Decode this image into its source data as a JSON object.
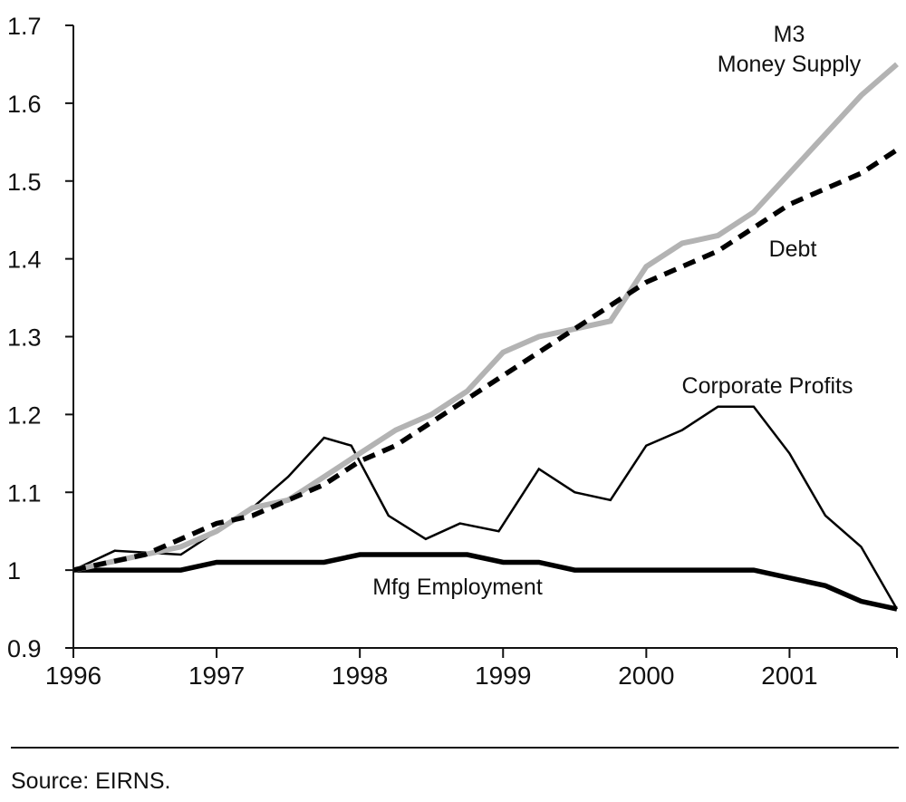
{
  "source": "Source:  EIRNS.",
  "chart_data": {
    "type": "line",
    "title": "",
    "xlabel": "",
    "ylabel": "",
    "xlim": [
      1996,
      2001.75
    ],
    "ylim": [
      0.9,
      1.7
    ],
    "yticks": [
      "0.9",
      "1",
      "1.1",
      "1.2",
      "1.3",
      "1.4",
      "1.5",
      "1.6",
      "1.7"
    ],
    "xticks": [
      "1996",
      "1997",
      "1998",
      "1999",
      "2000",
      "2001"
    ],
    "grid": false,
    "legend": "none (series labeled directly on chart)",
    "annotations": [
      {
        "text": "M3",
        "series": "M3 Money Supply"
      },
      {
        "text": "Money Supply",
        "series": "M3 Money Supply"
      },
      {
        "text": "Debt",
        "series": "Debt"
      },
      {
        "text": "Corporate Profits",
        "series": "Corporate Profits"
      },
      {
        "text": "Mfg Employment",
        "series": "Mfg Employment"
      }
    ],
    "series": [
      {
        "name": "M3 Money Supply",
        "color": "#b3b3b3",
        "style": "solid-thick",
        "x": [
          1996,
          1996.25,
          1996.5,
          1996.75,
          1997,
          1997.25,
          1997.5,
          1997.75,
          1998,
          1998.25,
          1998.5,
          1998.75,
          1999,
          1999.25,
          1999.5,
          1999.75,
          2000,
          2000.25,
          2000.5,
          2000.75,
          2001,
          2001.25,
          2001.5,
          2001.75
        ],
        "y": [
          1.0,
          1.01,
          1.02,
          1.03,
          1.05,
          1.08,
          1.09,
          1.12,
          1.15,
          1.18,
          1.2,
          1.23,
          1.28,
          1.3,
          1.31,
          1.32,
          1.39,
          1.42,
          1.43,
          1.46,
          1.51,
          1.56,
          1.61,
          1.65
        ]
      },
      {
        "name": "Debt",
        "color": "#000000",
        "style": "dashed-thick",
        "x": [
          1996,
          1996.25,
          1996.5,
          1996.75,
          1997,
          1997.25,
          1997.5,
          1997.75,
          1998,
          1998.25,
          1998.5,
          1998.75,
          1999,
          1999.25,
          1999.5,
          1999.75,
          2000,
          2000.25,
          2000.5,
          2000.75,
          2001,
          2001.25,
          2001.5,
          2001.75
        ],
        "y": [
          1.0,
          1.01,
          1.02,
          1.04,
          1.06,
          1.07,
          1.09,
          1.11,
          1.14,
          1.16,
          1.19,
          1.22,
          1.25,
          1.28,
          1.31,
          1.34,
          1.37,
          1.39,
          1.41,
          1.44,
          1.47,
          1.49,
          1.51,
          1.54
        ]
      },
      {
        "name": "Corporate Profits",
        "color": "#000000",
        "style": "solid-thin",
        "x": [
          1996,
          1996.29,
          1996.75,
          1997,
          1997.25,
          1997.5,
          1997.75,
          1997.94,
          1998.2,
          1998.46,
          1998.7,
          1998.97,
          1999.25,
          1999.5,
          1999.75,
          2000,
          2000.25,
          2000.5,
          2000.75,
          2001,
          2001.25,
          2001.5,
          2001.75
        ],
        "y": [
          1.0,
          1.025,
          1.02,
          1.05,
          1.08,
          1.12,
          1.17,
          1.16,
          1.07,
          1.04,
          1.06,
          1.05,
          1.13,
          1.1,
          1.09,
          1.16,
          1.18,
          1.21,
          1.21,
          1.15,
          1.07,
          1.03,
          0.95
        ]
      },
      {
        "name": "Mfg Employment",
        "color": "#000000",
        "style": "solid-extra-thick",
        "x": [
          1996,
          1996.25,
          1996.5,
          1996.75,
          1997,
          1997.25,
          1997.5,
          1997.75,
          1998,
          1998.25,
          1998.5,
          1998.75,
          1999,
          1999.25,
          1999.5,
          1999.75,
          2000,
          2000.25,
          2000.5,
          2000.75,
          2001,
          2001.25,
          2001.5,
          2001.75
        ],
        "y": [
          1.0,
          1.0,
          1.0,
          1.0,
          1.01,
          1.01,
          1.01,
          1.01,
          1.02,
          1.02,
          1.02,
          1.02,
          1.01,
          1.01,
          1.0,
          1.0,
          1.0,
          1.0,
          1.0,
          1.0,
          0.99,
          0.98,
          0.96,
          0.95
        ]
      }
    ]
  }
}
